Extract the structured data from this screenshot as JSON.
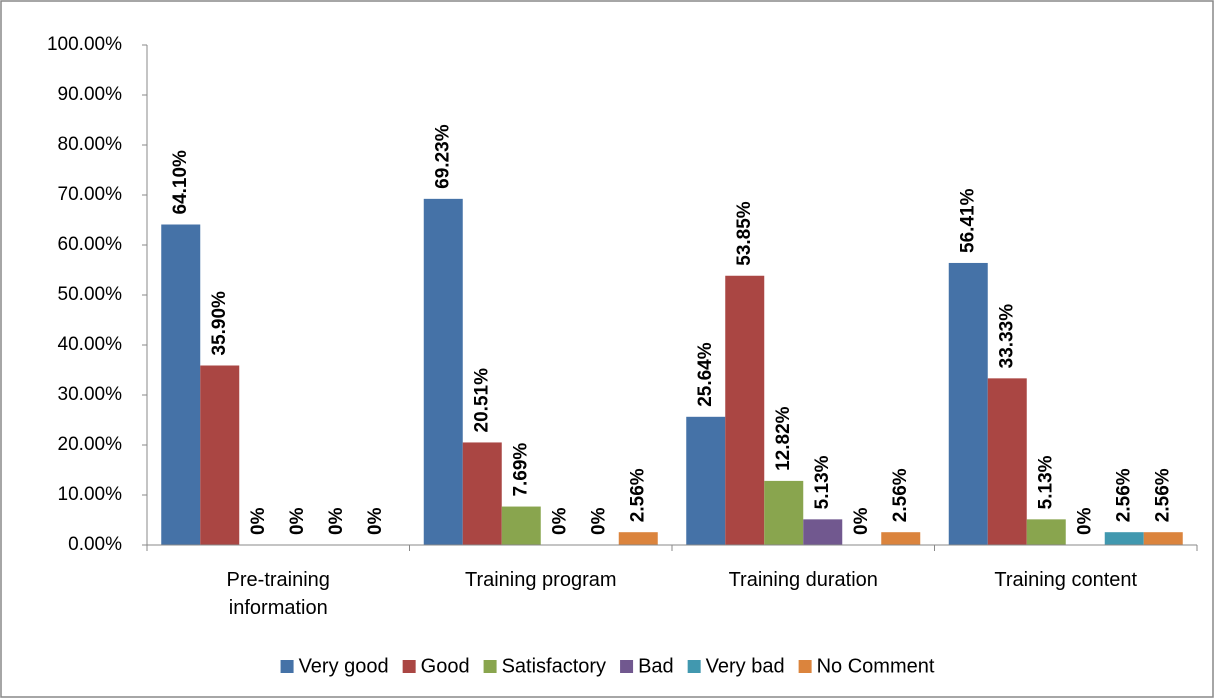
{
  "chart_data": {
    "type": "bar",
    "categories": [
      "Pre-training information",
      "Training program",
      "Training duration",
      "Training content"
    ],
    "series": [
      {
        "name": "Very good",
        "color": "#4572a7",
        "values": [
          64.1,
          69.23,
          25.64,
          56.41
        ],
        "value_labels": [
          "64.10%",
          "69.23%",
          "25.64%",
          "56.41%"
        ]
      },
      {
        "name": "Good",
        "color": "#aa4643",
        "values": [
          35.9,
          20.51,
          53.85,
          33.33
        ],
        "value_labels": [
          "35.90%",
          "20.51%",
          "53.85%",
          "33.33%"
        ]
      },
      {
        "name": "Satisfactory",
        "color": "#89a54e",
        "values": [
          0,
          7.69,
          12.82,
          5.13
        ],
        "value_labels": [
          "0%",
          "7.69%",
          "12.82%",
          "5.13%"
        ]
      },
      {
        "name": "Bad",
        "color": "#71588f",
        "values": [
          0,
          0,
          5.13,
          0
        ],
        "value_labels": [
          "0%",
          "0%",
          "5.13%",
          "0%"
        ]
      },
      {
        "name": "Very bad",
        "color": "#4198af",
        "values": [
          0,
          0,
          0,
          2.56
        ],
        "value_labels": [
          "0%",
          "0%",
          "0%",
          "2.56%"
        ]
      },
      {
        "name": "No Comment",
        "color": "#db843d",
        "values": [
          0,
          2.56,
          2.56,
          2.56
        ],
        "value_labels": [
          "0%",
          "2.56%",
          "2.56%",
          "2.56%"
        ]
      }
    ],
    "ylim": [
      0,
      100
    ],
    "yticks": [
      {
        "value": 0,
        "label": "0.00%"
      },
      {
        "value": 10,
        "label": "10.00%"
      },
      {
        "value": 20,
        "label": "20.00%"
      },
      {
        "value": 30,
        "label": "30.00%"
      },
      {
        "value": 40,
        "label": "40.00%"
      },
      {
        "value": 50,
        "label": "50.00%"
      },
      {
        "value": 60,
        "label": "60.00%"
      },
      {
        "value": 70,
        "label": "70.00%"
      },
      {
        "value": 80,
        "label": "80.00%"
      },
      {
        "value": 90,
        "label": "90.00%"
      },
      {
        "value": 100,
        "label": "100.00%"
      }
    ],
    "grid": false,
    "legend": "bottom"
  }
}
